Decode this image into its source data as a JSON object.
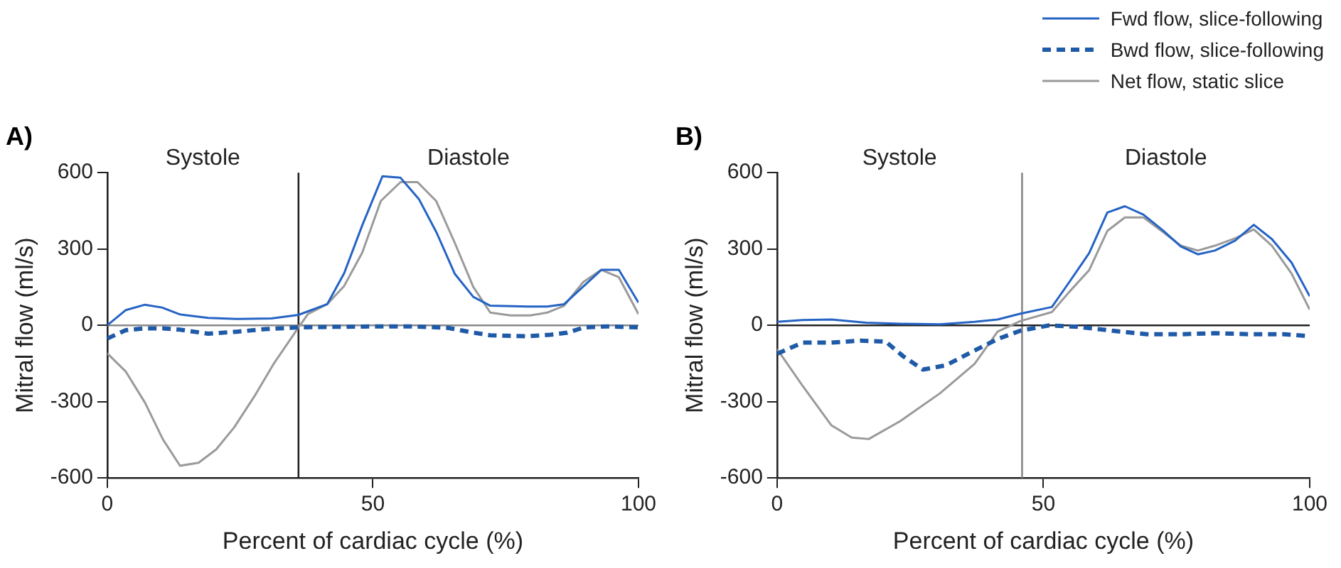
{
  "chart_data": [
    {
      "type": "line",
      "title": "A)",
      "xlabel": "Percent of cardiac cycle (%)",
      "ylabel": "Mitral flow (ml/s)",
      "xlim": [
        0,
        100
      ],
      "xticks": [
        0,
        50,
        100
      ],
      "ylim": [
        -600,
        600
      ],
      "yticks": [
        -600,
        -300,
        0,
        300,
        600
      ],
      "grid": false,
      "legend": false,
      "marker": "none",
      "series": [
        {
          "color": "#2563c4",
          "line_style": "solid",
          "x": [
            0,
            3.5,
            7.1,
            10.3,
            13.7,
            19,
            24.4,
            30.9,
            36,
            41.4,
            44.6,
            48,
            51.8,
            55.2,
            58.7,
            62,
            65.4,
            68.9,
            72.1,
            79.1,
            82.8,
            86,
            93,
            96.3,
            100
          ],
          "values": [
            0,
            60,
            81,
            70,
            43,
            29,
            25,
            27,
            41,
            83,
            205,
            393,
            586,
            580,
            495,
            364,
            203,
            112,
            77,
            74,
            74,
            83,
            218,
            218,
            89
          ]
        },
        {
          "color": "#1f5aa8",
          "line_style": "dashed",
          "x": [
            0,
            3.5,
            7.1,
            10.5,
            13.7,
            19,
            24.4,
            29.8,
            36,
            42.7,
            51.2,
            57.6,
            64.1,
            68.4,
            72.1,
            79.1,
            83.4,
            86.6,
            89.8,
            94.1,
            100
          ],
          "values": [
            -52,
            -19,
            -12,
            -12,
            -17,
            -33,
            -25,
            -15,
            -8,
            -6,
            -4,
            -4,
            -10,
            -27,
            -39,
            -43,
            -37,
            -29,
            -8,
            -4,
            -8
          ]
        },
        {
          "color": "#9a9a9a",
          "line_style": "solid",
          "x": [
            0,
            3.5,
            7.1,
            10.5,
            13.7,
            17.2,
            20.5,
            23.9,
            27.7,
            31.4,
            36,
            37.8,
            41.4,
            44.6,
            48,
            51.5,
            55.2,
            58.4,
            61.9,
            65.4,
            68.9,
            72.1,
            75.9,
            79.6,
            82.8,
            86,
            89.6,
            93,
            96.3,
            100
          ],
          "values": [
            -110,
            -182,
            -304,
            -449,
            -552,
            -540,
            -488,
            -401,
            -279,
            -149,
            -8,
            45,
            83,
            155,
            286,
            489,
            563,
            563,
            489,
            325,
            151,
            50,
            39,
            39,
            50,
            77,
            170,
            218,
            189,
            44
          ]
        }
      ],
      "ref_lines": [
        {
          "axis": "x",
          "value": 36,
          "color": "#222222"
        },
        {
          "axis": "y",
          "value": 0,
          "color": "#888888"
        }
      ],
      "annotations": [
        "Systole",
        "Diastole"
      ]
    },
    {
      "type": "line",
      "title": "B)",
      "xlabel": "Percent of cardiac cycle (%)",
      "ylabel": "Mitral flow (ml/s)",
      "xlim": [
        0,
        100
      ],
      "xticks": [
        0,
        50,
        100
      ],
      "ylim": [
        -600,
        600
      ],
      "yticks": [
        -600,
        -300,
        0,
        300,
        600
      ],
      "grid": false,
      "legend": "top right",
      "marker": "none",
      "series": [
        {
          "name": "Fwd flow, slice-following",
          "color": "#2563c4",
          "line_style": "solid",
          "x": [
            0,
            4.8,
            10.2,
            16.7,
            23.1,
            30.6,
            37.1,
            41.4,
            45.7,
            51.6,
            54.8,
            58.6,
            62,
            65.3,
            68.8,
            72.5,
            75.8,
            79,
            82.2,
            86,
            89.5,
            92.9,
            96.6,
            100
          ],
          "values": [
            14,
            21,
            23,
            10,
            6,
            4,
            14,
            23,
            46,
            72,
            168,
            284,
            443,
            468,
            435,
            372,
            310,
            279,
            294,
            333,
            395,
            339,
            246,
            114
          ]
        },
        {
          "name": "Bwd flow, slice-following",
          "color": "#1f5aa8",
          "line_style": "dashed",
          "x": [
            0,
            4.8,
            10.2,
            15.6,
            20.4,
            23.7,
            27.4,
            31.7,
            37.1,
            41.4,
            45.7,
            51.1,
            56.5,
            62.9,
            69.4,
            75.8,
            82.2,
            88.7,
            95.2,
            100
          ],
          "values": [
            -112,
            -68,
            -68,
            -60,
            -64,
            -122,
            -174,
            -157,
            -99,
            -54,
            -21,
            0,
            -6,
            -21,
            -35,
            -35,
            -31,
            -35,
            -35,
            -43
          ]
        },
        {
          "name": "Net flow, static slice",
          "color": "#9a9a9a",
          "line_style": "solid",
          "x": [
            0,
            4.8,
            10.2,
            14,
            17.2,
            23.1,
            30.6,
            37.1,
            41.4,
            45.7,
            51.6,
            54.8,
            58.6,
            62,
            65.3,
            68.8,
            72.5,
            75.8,
            79,
            82.2,
            86,
            89.5,
            92.9,
            96.6,
            100
          ],
          "values": [
            -93,
            -238,
            -393,
            -441,
            -447,
            -377,
            -267,
            -151,
            -25,
            17,
            52,
            130,
            217,
            371,
            424,
            424,
            366,
            313,
            294,
            313,
            342,
            377,
            313,
            203,
            62
          ]
        }
      ],
      "ref_lines": [
        {
          "axis": "x",
          "value": 46,
          "color": "#888888"
        },
        {
          "axis": "y",
          "value": 0,
          "color": "#222222"
        }
      ],
      "annotations": [
        "Systole",
        "Diastole"
      ]
    }
  ]
}
